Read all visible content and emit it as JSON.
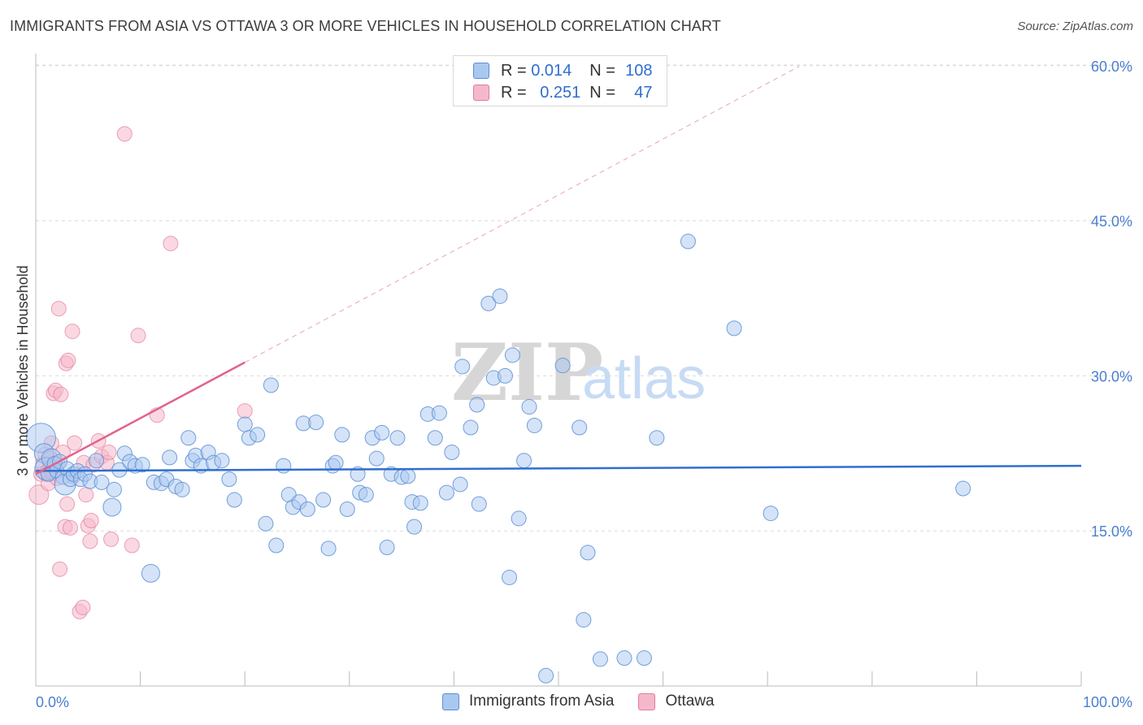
{
  "title": "IMMIGRANTS FROM ASIA VS OTTAWA 3 OR MORE VEHICLES IN HOUSEHOLD CORRELATION CHART",
  "source": "Source: ZipAtlas.com",
  "watermark_zip": "ZIP",
  "watermark_atlas": "atlas",
  "legend": {
    "rows": [
      {
        "r_label": "R =",
        "r_value": "0.014",
        "n_label": "N =",
        "n_value": "108",
        "color": "#a9c8f0"
      },
      {
        "r_label": "R =",
        "r_value": "0.251",
        "n_label": "N =",
        "n_value": "47",
        "color": "#f5b8cb"
      }
    ]
  },
  "bottom_legend": [
    "Immigrants from Asia",
    "Ottawa"
  ],
  "colors": {
    "blue_fill": "#a9c8f0",
    "blue_stroke": "#5b8fd6",
    "blue_line": "#2f6fd0",
    "pink_fill": "#f5b8cb",
    "pink_stroke": "#e27c9c",
    "pink_line": "#e0638c"
  },
  "chart_data": {
    "type": "scatter",
    "title": "IMMIGRANTS FROM ASIA VS OTTAWA 3 OR MORE VEHICLES IN HOUSEHOLD CORRELATION CHART",
    "xlabel": "",
    "ylabel": "3 or more Vehicles in Household",
    "xlim": [
      0,
      100
    ],
    "ylim": [
      0,
      62
    ],
    "x_tick_labels": [
      "0.0%",
      "100.0%"
    ],
    "y_ticks": [
      15,
      30,
      45,
      60
    ],
    "y_tick_labels": [
      "15.0%",
      "30.0%",
      "45.0%",
      "60.0%"
    ],
    "series": [
      {
        "name": "Immigrants from Asia",
        "R": 0.014,
        "N": 108,
        "trend": {
          "x0": 0,
          "y0": 20.8,
          "x1": 100,
          "y1": 21.3
        },
        "points": [
          [
            0.5,
            24.0
          ],
          [
            0.8,
            22.5
          ],
          [
            1.0,
            21.0
          ],
          [
            1.2,
            20.5
          ],
          [
            1.5,
            22.0
          ],
          [
            1.8,
            21.5
          ],
          [
            2.0,
            20.8
          ],
          [
            2.3,
            21.7
          ],
          [
            2.6,
            20.2
          ],
          [
            2.8,
            19.5
          ],
          [
            3.0,
            21.0
          ],
          [
            3.3,
            20.0
          ],
          [
            3.6,
            20.5
          ],
          [
            4.0,
            20.8
          ],
          [
            4.3,
            20.0
          ],
          [
            4.7,
            20.5
          ],
          [
            5.2,
            19.8
          ],
          [
            5.8,
            21.8
          ],
          [
            6.3,
            19.7
          ],
          [
            7.3,
            17.3
          ],
          [
            7.5,
            19.0
          ],
          [
            8.0,
            20.9
          ],
          [
            8.5,
            22.5
          ],
          [
            9.0,
            21.7
          ],
          [
            9.5,
            21.3
          ],
          [
            10.2,
            21.4
          ],
          [
            11.0,
            10.9
          ],
          [
            11.3,
            19.7
          ],
          [
            12.0,
            19.6
          ],
          [
            12.5,
            20.0
          ],
          [
            12.8,
            22.1
          ],
          [
            13.4,
            19.3
          ],
          [
            14.0,
            19.0
          ],
          [
            14.6,
            24.0
          ],
          [
            15.0,
            21.8
          ],
          [
            15.3,
            22.3
          ],
          [
            15.8,
            21.3
          ],
          [
            16.5,
            22.6
          ],
          [
            17.0,
            21.6
          ],
          [
            17.8,
            21.8
          ],
          [
            18.5,
            20.0
          ],
          [
            19.0,
            18.0
          ],
          [
            20.0,
            25.3
          ],
          [
            20.4,
            24.0
          ],
          [
            21.2,
            24.3
          ],
          [
            22.0,
            15.7
          ],
          [
            22.5,
            29.1
          ],
          [
            23.0,
            13.6
          ],
          [
            23.7,
            21.3
          ],
          [
            24.2,
            18.5
          ],
          [
            24.6,
            17.3
          ],
          [
            25.2,
            17.8
          ],
          [
            25.6,
            25.4
          ],
          [
            26.0,
            17.1
          ],
          [
            26.8,
            25.5
          ],
          [
            27.5,
            18.0
          ],
          [
            28.0,
            13.3
          ],
          [
            28.4,
            21.3
          ],
          [
            28.7,
            21.6
          ],
          [
            29.3,
            24.3
          ],
          [
            29.8,
            17.1
          ],
          [
            30.8,
            20.5
          ],
          [
            31.0,
            18.7
          ],
          [
            31.6,
            18.5
          ],
          [
            32.2,
            24.0
          ],
          [
            32.6,
            22.0
          ],
          [
            33.1,
            24.5
          ],
          [
            33.6,
            13.4
          ],
          [
            34.0,
            20.5
          ],
          [
            34.6,
            24.0
          ],
          [
            35.0,
            20.2
          ],
          [
            35.6,
            20.3
          ],
          [
            36.0,
            17.8
          ],
          [
            36.2,
            15.4
          ],
          [
            36.8,
            17.7
          ],
          [
            37.5,
            26.3
          ],
          [
            38.2,
            24.0
          ],
          [
            38.6,
            26.4
          ],
          [
            39.3,
            18.7
          ],
          [
            39.8,
            22.6
          ],
          [
            40.6,
            19.5
          ],
          [
            40.8,
            30.9
          ],
          [
            41.6,
            25.0
          ],
          [
            42.2,
            27.2
          ],
          [
            42.4,
            17.6
          ],
          [
            43.3,
            37.0
          ],
          [
            43.8,
            29.8
          ],
          [
            44.4,
            37.7
          ],
          [
            44.9,
            30.0
          ],
          [
            45.3,
            10.5
          ],
          [
            45.6,
            32.0
          ],
          [
            46.2,
            16.2
          ],
          [
            46.7,
            21.8
          ],
          [
            47.2,
            27.0
          ],
          [
            47.7,
            25.2
          ],
          [
            48.8,
            1.0
          ],
          [
            50.4,
            31.0
          ],
          [
            52.0,
            25.0
          ],
          [
            52.4,
            6.4
          ],
          [
            52.8,
            12.9
          ],
          [
            54.0,
            2.6
          ],
          [
            56.3,
            2.7
          ],
          [
            58.2,
            2.7
          ],
          [
            59.4,
            24.0
          ],
          [
            62.4,
            43.0
          ],
          [
            66.8,
            34.6
          ],
          [
            70.3,
            16.7
          ],
          [
            88.7,
            19.1
          ]
        ]
      },
      {
        "name": "Ottawa",
        "R": 0.251,
        "N": 47,
        "trend": {
          "x0": 0,
          "y0": 20.5,
          "x1": 20,
          "y1": 31.3
        },
        "points": [
          [
            0.3,
            18.5
          ],
          [
            0.5,
            20.5
          ],
          [
            0.7,
            21.5
          ],
          [
            0.9,
            22.4
          ],
          [
            1.0,
            20.5
          ],
          [
            1.1,
            20.8
          ],
          [
            1.2,
            19.6
          ],
          [
            1.3,
            21.0
          ],
          [
            1.4,
            22.0
          ],
          [
            1.5,
            23.5
          ],
          [
            1.6,
            20.6
          ],
          [
            1.7,
            28.3
          ],
          [
            1.8,
            21.2
          ],
          [
            1.9,
            28.6
          ],
          [
            2.0,
            20.1
          ],
          [
            2.1,
            21.5
          ],
          [
            2.2,
            36.5
          ],
          [
            2.3,
            11.3
          ],
          [
            2.4,
            28.2
          ],
          [
            2.6,
            22.6
          ],
          [
            2.8,
            15.4
          ],
          [
            2.9,
            31.2
          ],
          [
            3.0,
            17.6
          ],
          [
            3.1,
            31.5
          ],
          [
            3.3,
            15.3
          ],
          [
            3.5,
            34.3
          ],
          [
            3.6,
            20.3
          ],
          [
            3.7,
            23.5
          ],
          [
            4.2,
            7.2
          ],
          [
            4.5,
            7.6
          ],
          [
            4.6,
            21.6
          ],
          [
            4.8,
            18.5
          ],
          [
            5.0,
            15.5
          ],
          [
            5.2,
            14.0
          ],
          [
            5.3,
            16.0
          ],
          [
            5.5,
            21.4
          ],
          [
            6.0,
            23.7
          ],
          [
            6.3,
            22.2
          ],
          [
            6.8,
            21.6
          ],
          [
            7.0,
            22.6
          ],
          [
            7.2,
            14.2
          ],
          [
            8.5,
            53.4
          ],
          [
            9.2,
            13.6
          ],
          [
            9.8,
            33.9
          ],
          [
            11.6,
            26.2
          ],
          [
            12.9,
            42.8
          ],
          [
            20.0,
            26.6
          ]
        ]
      }
    ]
  }
}
